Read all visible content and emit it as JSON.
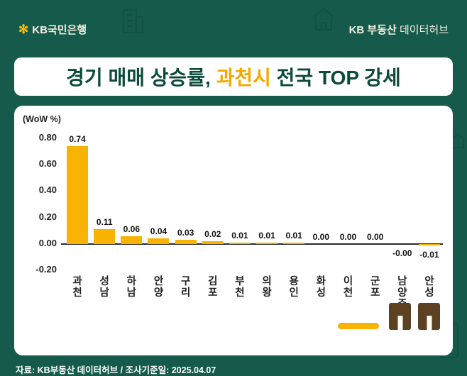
{
  "header": {
    "logo_text": "KB국민은행",
    "brand_bold": "KB 부동산",
    "brand_light": " 데이터허브"
  },
  "title": {
    "part1": "경기 매매 상승률, ",
    "highlight": "과천시",
    "part2": " 전국 TOP 강세"
  },
  "footer": {
    "source": "자료: KB부동산 데이터허브 / 조사기준일: 2025.04.07"
  },
  "colors": {
    "background_green": "#155a4a",
    "title_green": "#0c4a3b",
    "accent_yellow": "#f8b301",
    "highlight_orange": "#f2a800",
    "decor_brown": "#5d4123"
  },
  "chart_data": {
    "type": "bar",
    "title": "경기 매매 상승률 (WoW %)",
    "unit_label": "(WoW %)",
    "categories": [
      "과천",
      "성남",
      "하남",
      "안양",
      "구리",
      "김포",
      "부천",
      "의왕",
      "용인",
      "화성",
      "이천",
      "군포",
      "남양주",
      "안성"
    ],
    "values": [
      0.74,
      0.11,
      0.06,
      0.04,
      0.03,
      0.02,
      0.01,
      0.01,
      0.01,
      0.0,
      0.0,
      0.0,
      -0.0,
      -0.01
    ],
    "value_labels": [
      "0.74",
      "0.11",
      "0.06",
      "0.04",
      "0.03",
      "0.02",
      "0.01",
      "0.01",
      "0.01",
      "0.00",
      "0.00",
      "0.00",
      "-0.00",
      "-0.01"
    ],
    "ylim": [
      -0.2,
      0.8
    ],
    "yticks": [
      "0.80",
      "0.60",
      "0.40",
      "0.20",
      "0.00",
      "-0.20"
    ],
    "bar_color": "#f8b301",
    "grid": false,
    "legend": false
  }
}
